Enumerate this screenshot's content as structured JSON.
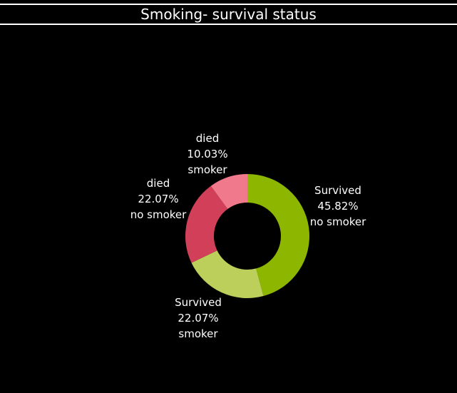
{
  "title": "Smoking- survival status",
  "colors": {
    "background": "#000000",
    "text": "#ffffff"
  },
  "chart_data": {
    "type": "pie",
    "donut": true,
    "title": "Smoking- survival status",
    "legend": "none",
    "slices": [
      {
        "status": "Survived",
        "group": "no smoker",
        "value": 45.82,
        "label": "45.82%",
        "color": "#8db600"
      },
      {
        "status": "Survived",
        "group": "smoker",
        "value": 22.07,
        "label": "22.07%",
        "color": "#bccf5a"
      },
      {
        "status": "died",
        "group": "no smoker",
        "value": 22.07,
        "label": "22.07%",
        "color": "#d14058"
      },
      {
        "status": "died",
        "group": "smoker",
        "value": 10.03,
        "label": "10.03%",
        "color": "#f07a8c"
      }
    ]
  }
}
